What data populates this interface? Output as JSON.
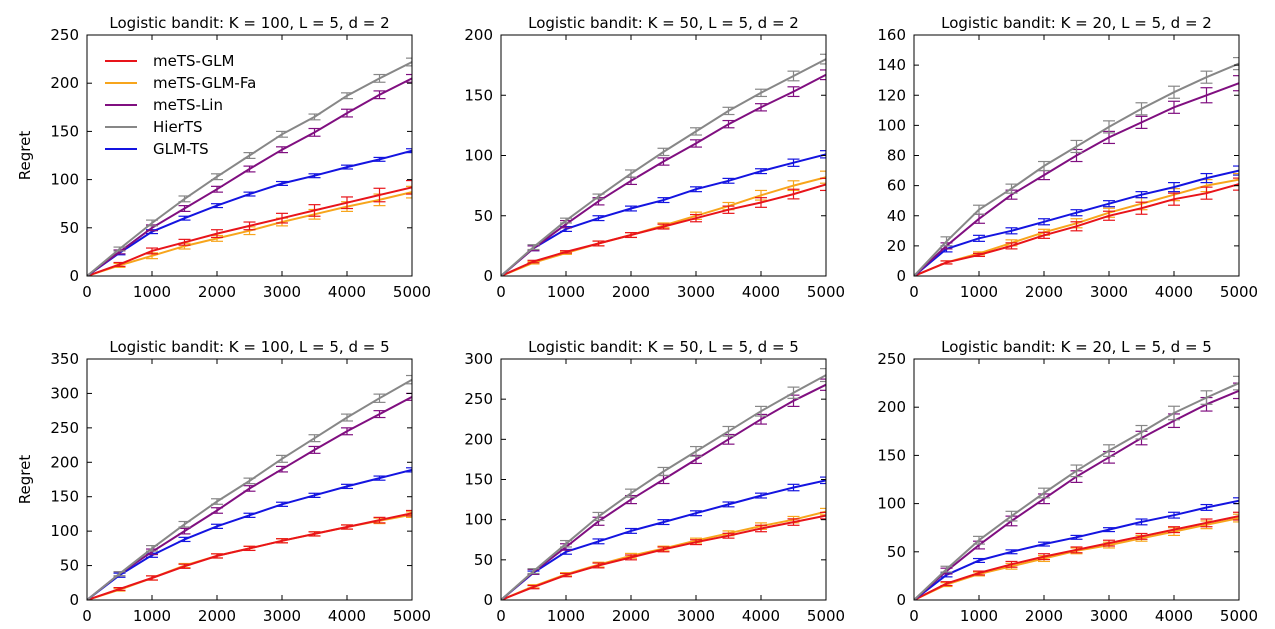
{
  "figure": {
    "ylabel": "Regret"
  },
  "series_styles": [
    {
      "name": "meTS-GLM",
      "color": "#e8141a"
    },
    {
      "name": "meTS-GLM-Fa",
      "color": "#f7a51c"
    },
    {
      "name": "meTS-Lin",
      "color": "#800f80"
    },
    {
      "name": "HierTS",
      "color": "#878787"
    },
    {
      "name": "GLM-TS",
      "color": "#1414e0"
    }
  ],
  "chart_data": [
    {
      "type": "line",
      "title": "Logistic bandit: K = 100, L = 5, d = 2",
      "xlabel": "",
      "ylabel": "Regret",
      "xlim": [
        0,
        5000
      ],
      "ylim": [
        0,
        250
      ],
      "xticks": [
        0,
        1000,
        2000,
        3000,
        4000,
        5000
      ],
      "yticks": [
        0,
        50,
        100,
        150,
        200,
        250
      ],
      "legend": "top-left",
      "x": [
        0,
        500,
        1000,
        1500,
        2000,
        2500,
        3000,
        3500,
        4000,
        4500,
        5000
      ],
      "series": [
        {
          "name": "meTS-GLM",
          "values": [
            0,
            12,
            26,
            35,
            44,
            52,
            60,
            68,
            76,
            84,
            92
          ],
          "errors": [
            0,
            2,
            3,
            3,
            4,
            4,
            5,
            6,
            6,
            7,
            7
          ]
        },
        {
          "name": "meTS-GLM-Fa",
          "values": [
            0,
            11,
            21,
            31,
            39,
            47,
            56,
            64,
            72,
            79,
            87
          ],
          "errors": [
            0,
            2,
            3,
            3,
            3,
            4,
            4,
            5,
            5,
            6,
            6
          ]
        },
        {
          "name": "meTS-Lin",
          "values": [
            0,
            25,
            50,
            70,
            90,
            111,
            131,
            149,
            169,
            188,
            205
          ],
          "errors": [
            0,
            2,
            3,
            3,
            3,
            3,
            3,
            4,
            4,
            4,
            4
          ]
        },
        {
          "name": "HierTS",
          "values": [
            0,
            28,
            55,
            80,
            103,
            125,
            147,
            165,
            187,
            205,
            222
          ],
          "errors": [
            0,
            2,
            3,
            3,
            3,
            3,
            3,
            3,
            3,
            4,
            4
          ]
        },
        {
          "name": "GLM-TS",
          "values": [
            0,
            24,
            46,
            60,
            73,
            85,
            96,
            104,
            113,
            121,
            130
          ],
          "errors": [
            0,
            2,
            2,
            2,
            2,
            2,
            2,
            2,
            2,
            2,
            2
          ]
        }
      ]
    },
    {
      "type": "line",
      "title": "Logistic bandit: K = 50, L = 5, d = 2",
      "xlabel": "",
      "ylabel": "",
      "xlim": [
        0,
        5000
      ],
      "ylim": [
        0,
        200
      ],
      "xticks": [
        0,
        1000,
        2000,
        3000,
        4000,
        5000
      ],
      "yticks": [
        0,
        50,
        100,
        150,
        200
      ],
      "x": [
        0,
        500,
        1000,
        1500,
        2000,
        2500,
        3000,
        3500,
        4000,
        4500,
        5000
      ],
      "series": [
        {
          "name": "meTS-GLM",
          "values": [
            0,
            12,
            20,
            27,
            34,
            41,
            48,
            55,
            61,
            68,
            76
          ],
          "errors": [
            0,
            1,
            1,
            2,
            2,
            2,
            3,
            3,
            4,
            4,
            5
          ]
        },
        {
          "name": "meTS-GLM-Fa",
          "values": [
            0,
            11,
            19,
            27,
            34,
            42,
            50,
            58,
            67,
            75,
            82
          ],
          "errors": [
            0,
            1,
            1,
            2,
            2,
            2,
            3,
            3,
            4,
            4,
            5
          ]
        },
        {
          "name": "meTS-Lin",
          "values": [
            0,
            23,
            43,
            62,
            79,
            95,
            110,
            126,
            140,
            153,
            167
          ],
          "errors": [
            0,
            2,
            3,
            3,
            3,
            3,
            3,
            3,
            3,
            4,
            4
          ]
        },
        {
          "name": "HierTS",
          "values": [
            0,
            24,
            46,
            66,
            85,
            103,
            120,
            137,
            152,
            166,
            180
          ],
          "errors": [
            0,
            2,
            2,
            2,
            3,
            3,
            3,
            3,
            3,
            4,
            4
          ]
        },
        {
          "name": "GLM-TS",
          "values": [
            0,
            23,
            39,
            48,
            56,
            63,
            72,
            79,
            87,
            94,
            101
          ],
          "errors": [
            0,
            2,
            2,
            2,
            2,
            2,
            2,
            2,
            2,
            3,
            3
          ]
        }
      ]
    },
    {
      "type": "line",
      "title": "Logistic bandit: K = 20, L = 5, d = 2",
      "xlabel": "",
      "ylabel": "",
      "xlim": [
        0,
        5000
      ],
      "ylim": [
        0,
        160
      ],
      "xticks": [
        0,
        1000,
        2000,
        3000,
        4000,
        5000
      ],
      "yticks": [
        0,
        20,
        40,
        60,
        80,
        100,
        120,
        140,
        160
      ],
      "x": [
        0,
        500,
        1000,
        1500,
        2000,
        2500,
        3000,
        3500,
        4000,
        4500,
        5000
      ],
      "series": [
        {
          "name": "meTS-GLM",
          "values": [
            0,
            9,
            14,
            20,
            27,
            33,
            40,
            45,
            51,
            55,
            61
          ],
          "errors": [
            0,
            1,
            1,
            2,
            2,
            3,
            3,
            4,
            4,
            4,
            4
          ]
        },
        {
          "name": "meTS-GLM-Fa",
          "values": [
            0,
            9,
            15,
            22,
            29,
            35,
            42,
            48,
            54,
            60,
            64
          ],
          "errors": [
            0,
            1,
            1,
            2,
            2,
            3,
            3,
            4,
            4,
            4,
            4
          ]
        },
        {
          "name": "meTS-Lin",
          "values": [
            0,
            20,
            38,
            54,
            67,
            80,
            92,
            102,
            112,
            120,
            128
          ],
          "errors": [
            0,
            2,
            3,
            3,
            3,
            4,
            4,
            4,
            4,
            5,
            5
          ]
        },
        {
          "name": "HierTS",
          "values": [
            0,
            23,
            44,
            58,
            73,
            86,
            99,
            111,
            122,
            132,
            141
          ],
          "errors": [
            0,
            3,
            3,
            3,
            3,
            4,
            4,
            4,
            4,
            4,
            4
          ]
        },
        {
          "name": "GLM-TS",
          "values": [
            0,
            18,
            25,
            30,
            36,
            42,
            48,
            54,
            59,
            65,
            70
          ],
          "errors": [
            0,
            2,
            2,
            2,
            2,
            2,
            2,
            2,
            3,
            3,
            3
          ]
        }
      ]
    },
    {
      "type": "line",
      "title": "Logistic bandit: K = 100, L = 5, d = 5",
      "xlabel": "",
      "ylabel": "Regret",
      "xlim": [
        0,
        5000
      ],
      "ylim": [
        0,
        350
      ],
      "xticks": [
        0,
        1000,
        2000,
        3000,
        4000,
        5000
      ],
      "yticks": [
        0,
        50,
        100,
        150,
        200,
        250,
        300,
        350
      ],
      "x": [
        0,
        500,
        1000,
        1500,
        2000,
        2500,
        3000,
        3500,
        4000,
        4500,
        5000
      ],
      "series": [
        {
          "name": "meTS-GLM",
          "values": [
            0,
            16,
            32,
            49,
            64,
            75,
            86,
            96,
            106,
            116,
            126
          ],
          "errors": [
            0,
            2,
            3,
            3,
            3,
            3,
            3,
            3,
            3,
            4,
            4
          ]
        },
        {
          "name": "meTS-GLM-Fa",
          "values": [
            0,
            15,
            32,
            50,
            64,
            75,
            86,
            96,
            106,
            115,
            124
          ],
          "errors": [
            0,
            2,
            3,
            3,
            3,
            3,
            3,
            3,
            3,
            4,
            4
          ]
        },
        {
          "name": "meTS-Lin",
          "values": [
            0,
            38,
            70,
            100,
            130,
            162,
            190,
            218,
            245,
            270,
            295
          ],
          "errors": [
            0,
            3,
            4,
            4,
            4,
            4,
            4,
            5,
            5,
            5,
            5
          ]
        },
        {
          "name": "HierTS",
          "values": [
            0,
            38,
            75,
            110,
            143,
            173,
            205,
            235,
            265,
            293,
            320
          ],
          "errors": [
            0,
            3,
            4,
            4,
            4,
            4,
            5,
            5,
            5,
            6,
            6
          ]
        },
        {
          "name": "GLM-TS",
          "values": [
            0,
            36,
            65,
            88,
            107,
            123,
            139,
            152,
            165,
            177,
            189
          ],
          "errors": [
            0,
            3,
            3,
            3,
            3,
            3,
            3,
            3,
            3,
            3,
            3
          ]
        }
      ]
    },
    {
      "type": "line",
      "title": "Logistic bandit: K = 50, L = 5, d = 5",
      "xlabel": "",
      "ylabel": "",
      "xlim": [
        0,
        5000
      ],
      "ylim": [
        0,
        300
      ],
      "xticks": [
        0,
        1000,
        2000,
        3000,
        4000,
        5000
      ],
      "yticks": [
        0,
        50,
        100,
        150,
        200,
        250,
        300
      ],
      "x": [
        0,
        500,
        1000,
        1500,
        2000,
        2500,
        3000,
        3500,
        4000,
        4500,
        5000
      ],
      "series": [
        {
          "name": "meTS-GLM",
          "values": [
            0,
            16,
            31,
            43,
            53,
            63,
            72,
            80,
            89,
            97,
            105
          ],
          "errors": [
            0,
            2,
            2,
            3,
            3,
            3,
            3,
            3,
            4,
            4,
            4
          ]
        },
        {
          "name": "meTS-GLM-Fa",
          "values": [
            0,
            17,
            32,
            44,
            55,
            64,
            74,
            83,
            92,
            100,
            110
          ],
          "errors": [
            0,
            2,
            2,
            3,
            3,
            3,
            3,
            3,
            4,
            4,
            4
          ]
        },
        {
          "name": "meTS-Lin",
          "values": [
            0,
            35,
            66,
            98,
            125,
            150,
            175,
            200,
            225,
            248,
            268
          ],
          "errors": [
            0,
            3,
            4,
            5,
            5,
            5,
            5,
            6,
            6,
            7,
            7
          ]
        },
        {
          "name": "HierTS",
          "values": [
            0,
            36,
            70,
            104,
            133,
            160,
            185,
            210,
            235,
            258,
            280
          ],
          "errors": [
            0,
            3,
            4,
            5,
            5,
            5,
            6,
            6,
            6,
            7,
            8
          ]
        },
        {
          "name": "GLM-TS",
          "values": [
            0,
            34,
            60,
            73,
            86,
            97,
            108,
            119,
            130,
            140,
            149
          ],
          "errors": [
            0,
            2,
            3,
            3,
            3,
            3,
            3,
            3,
            3,
            4,
            4
          ]
        }
      ]
    },
    {
      "type": "line",
      "title": "Logistic bandit: K = 20, L = 5, d = 5",
      "xlabel": "",
      "ylabel": "",
      "xlim": [
        0,
        5000
      ],
      "ylim": [
        0,
        250
      ],
      "xticks": [
        0,
        1000,
        2000,
        3000,
        4000,
        5000
      ],
      "yticks": [
        0,
        50,
        100,
        150,
        200,
        250
      ],
      "x": [
        0,
        500,
        1000,
        1500,
        2000,
        2500,
        3000,
        3500,
        4000,
        4500,
        5000
      ],
      "series": [
        {
          "name": "meTS-GLM",
          "values": [
            0,
            17,
            28,
            37,
            45,
            52,
            59,
            66,
            73,
            80,
            87
          ],
          "errors": [
            0,
            2,
            2,
            3,
            3,
            3,
            3,
            3,
            3,
            4,
            4
          ]
        },
        {
          "name": "meTS-GLM-Fa",
          "values": [
            0,
            16,
            27,
            35,
            43,
            51,
            57,
            64,
            71,
            78,
            85
          ],
          "errors": [
            0,
            2,
            2,
            3,
            3,
            3,
            3,
            3,
            4,
            4,
            4
          ]
        },
        {
          "name": "meTS-Lin",
          "values": [
            0,
            30,
            57,
            82,
            105,
            128,
            148,
            168,
            186,
            203,
            217
          ],
          "errors": [
            0,
            3,
            4,
            5,
            5,
            6,
            6,
            7,
            7,
            7,
            8
          ]
        },
        {
          "name": "HierTS",
          "values": [
            0,
            32,
            62,
            87,
            111,
            134,
            155,
            174,
            194,
            210,
            225
          ],
          "errors": [
            0,
            3,
            4,
            5,
            5,
            6,
            6,
            7,
            7,
            7,
            7
          ]
        },
        {
          "name": "GLM-TS",
          "values": [
            0,
            26,
            41,
            50,
            58,
            65,
            73,
            81,
            88,
            96,
            103
          ],
          "errors": [
            0,
            2,
            2,
            2,
            2,
            2,
            2,
            3,
            3,
            3,
            3
          ]
        }
      ]
    }
  ]
}
